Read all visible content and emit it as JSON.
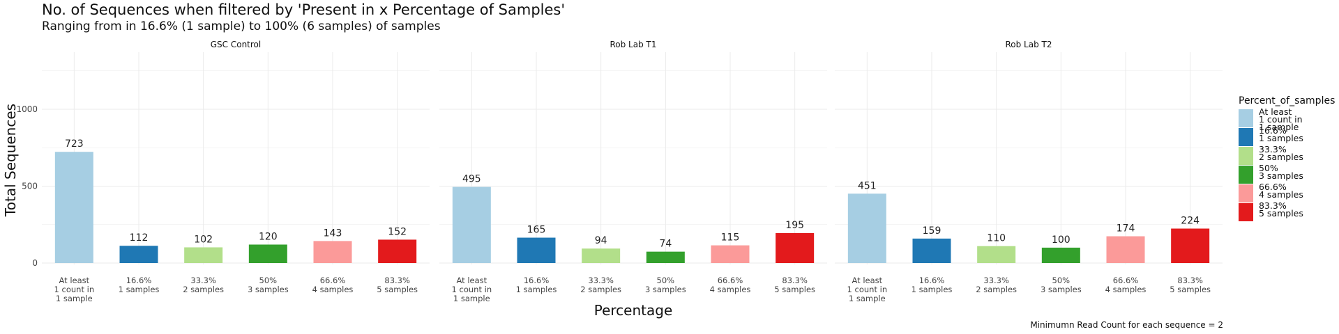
{
  "title": "No. of Sequences when filtered by 'Present in x Percentage of Samples'",
  "subtitle": "Ranging from in 16.6% (1 sample) to 100% (6 samples) of samples",
  "caption": "Minimumn Read Count for each sequence = 2",
  "legend": {
    "title": "Percent_of_samples",
    "items": [
      {
        "label": "At least\n1 count in\n1 sample",
        "color": "#a6cee3"
      },
      {
        "label": "16.6%\n1 samples",
        "color": "#1f78b4"
      },
      {
        "label": "33.3%\n2 samples",
        "color": "#b2df8a"
      },
      {
        "label": "50%\n3 samples",
        "color": "#33a02c"
      },
      {
        "label": "66.6%\n4 samples",
        "color": "#fb9a99"
      },
      {
        "label": "83.3%\n5 samples",
        "color": "#e31a1c"
      }
    ]
  },
  "chart_data": {
    "type": "bar",
    "xlabel": "Percentage",
    "ylabel": "Total Sequences",
    "ylim": [
      0,
      1000
    ],
    "yticks": [
      0,
      500,
      1000
    ],
    "grid": true,
    "legend_position": "right",
    "categories": [
      "At least\n1 count in\n1 sample",
      "16.6%\n1 samples",
      "33.3%\n2 samples",
      "50%\n3 samples",
      "66.6%\n4 samples",
      "83.3%\n5 samples"
    ],
    "colors": [
      "#a6cee3",
      "#1f78b4",
      "#b2df8a",
      "#33a02c",
      "#fb9a99",
      "#e31a1c"
    ],
    "panels": [
      {
        "name": "GSC Control",
        "values": [
          723,
          112,
          102,
          120,
          143,
          152
        ]
      },
      {
        "name": "Rob Lab T1",
        "values": [
          495,
          165,
          94,
          74,
          115,
          195
        ]
      },
      {
        "name": "Rob Lab T2",
        "values": [
          451,
          159,
          110,
          100,
          174,
          224
        ]
      }
    ]
  }
}
